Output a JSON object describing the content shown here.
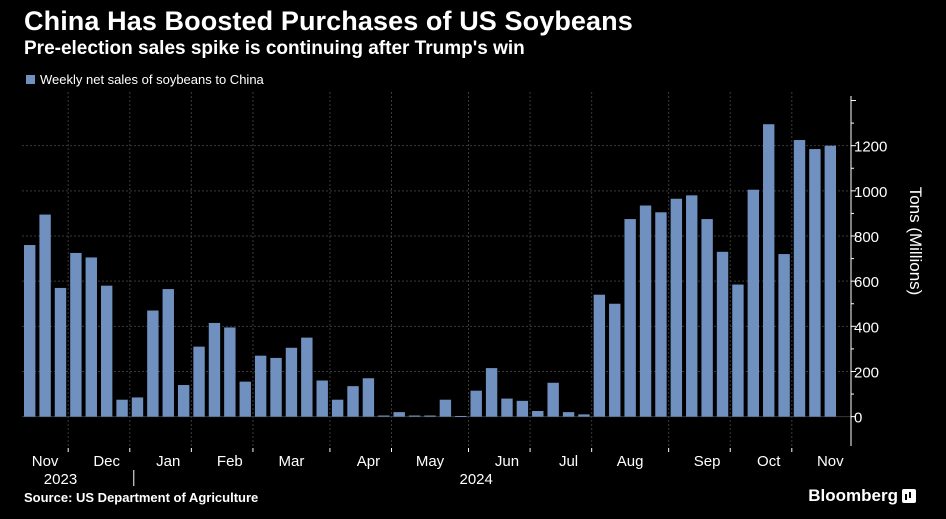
{
  "title": "China Has Boosted Purchases of US Soybeans",
  "subtitle": "Pre-election sales spike is continuing after Trump's win",
  "source": "Source: US Department of Agriculture",
  "brand": "Bloomberg",
  "colors": {
    "bar": "#7090c0",
    "background": "#000000",
    "grid": "#3a3a3a",
    "text": "#ffffff"
  },
  "chart_data": {
    "type": "bar",
    "title": "China Has Boosted Purchases of US Soybeans",
    "subtitle": "Pre-election sales spike is continuing after Trump's win",
    "ylabel": "Tons (Millions)",
    "xlabel": "",
    "ylim": [
      -130,
      1420
    ],
    "yticks": [
      0,
      200,
      400,
      600,
      800,
      1000,
      1200
    ],
    "grid": true,
    "legend": "top-left",
    "series": [
      {
        "name": "Weekly net sales of soybeans to China",
        "values": [
          760,
          895,
          570,
          725,
          705,
          580,
          75,
          85,
          470,
          565,
          140,
          310,
          415,
          395,
          155,
          270,
          260,
          305,
          350,
          160,
          75,
          135,
          170,
          5,
          20,
          5,
          5,
          75,
          3,
          115,
          215,
          80,
          70,
          25,
          150,
          20,
          10,
          540,
          500,
          875,
          935,
          905,
          965,
          980,
          875,
          730,
          585,
          1005,
          1295,
          720,
          1225,
          1185,
          1200
        ]
      }
    ],
    "month_labels": [
      {
        "label": "Nov",
        "bar_index": 1
      },
      {
        "label": "Dec",
        "bar_index": 5
      },
      {
        "label": "Jan",
        "bar_index": 9
      },
      {
        "label": "Feb",
        "bar_index": 13
      },
      {
        "label": "Mar",
        "bar_index": 17
      },
      {
        "label": "Apr",
        "bar_index": 22
      },
      {
        "label": "May",
        "bar_index": 26
      },
      {
        "label": "Jun",
        "bar_index": 31
      },
      {
        "label": "Jul",
        "bar_index": 35
      },
      {
        "label": "Aug",
        "bar_index": 39
      },
      {
        "label": "Sep",
        "bar_index": 44
      },
      {
        "label": "Oct",
        "bar_index": 48
      },
      {
        "label": "Nov",
        "bar_index": 52
      }
    ],
    "year_labels": [
      {
        "label": "2023",
        "bar_index": 2
      },
      {
        "label": "2024",
        "bar_index": 29
      }
    ]
  }
}
